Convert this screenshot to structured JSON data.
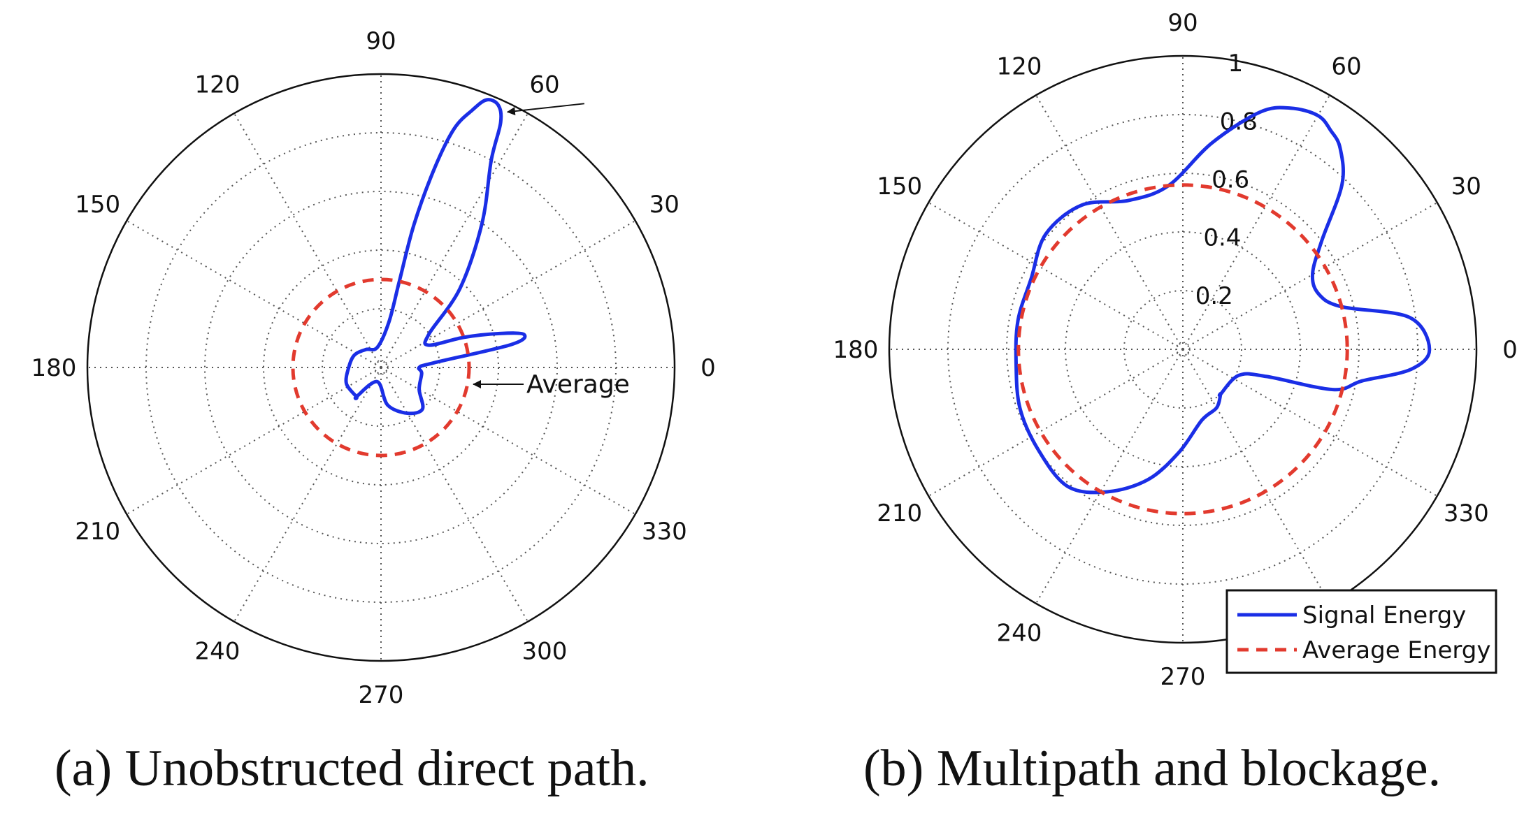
{
  "chart_data": [
    {
      "type": "polar",
      "caption": "(a) Unobstructed direct path.",
      "angle_ticks": [
        0,
        30,
        60,
        90,
        120,
        150,
        180,
        210,
        240,
        270,
        300,
        330
      ],
      "angle_tick_labels": [
        "0",
        "30",
        "60",
        "90",
        "120",
        "150",
        "180",
        "210",
        "240",
        "270",
        "300",
        "330"
      ],
      "radial_range": [
        0,
        1
      ],
      "radial_ticks": [
        0.2,
        0.4,
        0.6,
        0.8,
        1
      ],
      "radial_tick_labels": [],
      "grid": true,
      "series": [
        {
          "style": "solid",
          "color": "#1a2ee6",
          "points": [
            [
              -130,
              0.13
            ],
            [
              -105,
              0.05
            ],
            [
              -80,
              0.13
            ],
            [
              -60,
              0.18
            ],
            [
              -45,
              0.2
            ],
            [
              -30,
              0.15
            ],
            [
              -8,
              0.14
            ],
            [
              0,
              0.13
            ],
            [
              5,
              0.18
            ],
            [
              10,
              0.45
            ],
            [
              13,
              0.5
            ],
            [
              16,
              0.42
            ],
            [
              20,
              0.3
            ],
            [
              25,
              0.18
            ],
            [
              35,
              0.2
            ],
            [
              45,
              0.38
            ],
            [
              55,
              0.6
            ],
            [
              62,
              0.8
            ],
            [
              64,
              0.93
            ],
            [
              66,
              0.98
            ],
            [
              68.5,
              0.98
            ],
            [
              70.5,
              0.93
            ],
            [
              73,
              0.85
            ],
            [
              75,
              0.7
            ],
            [
              77,
              0.5
            ],
            [
              78,
              0.3
            ],
            [
              80,
              0.16
            ],
            [
              100,
              0.07
            ],
            [
              130,
              0.08
            ],
            [
              155,
              0.1
            ],
            [
              180,
              0.11
            ],
            [
              205,
              0.13
            ],
            [
              230,
              0.13
            ]
          ]
        },
        {
          "style": "dashed",
          "color": "#e23a2e",
          "radius": 0.3
        }
      ],
      "annotations": [
        {
          "text": "",
          "target_angle": 66,
          "target_r": 1.0
        },
        {
          "text": "Average",
          "target_angle": 0,
          "target_r": 0.3
        }
      ]
    },
    {
      "type": "polar",
      "caption": "(b) Multipath and blockage.",
      "angle_ticks": [
        0,
        30,
        60,
        90,
        120,
        150,
        180,
        210,
        240,
        270,
        300,
        330
      ],
      "angle_tick_labels": [
        "0",
        "30",
        "60",
        "90",
        "120",
        "150",
        "180",
        "210",
        "240",
        "270",
        "300",
        "330"
      ],
      "radial_range": [
        0,
        1
      ],
      "radial_ticks": [
        0.2,
        0.4,
        0.6,
        0.8,
        1
      ],
      "radial_tick_labels": [
        "0.2",
        "0.4",
        "0.6",
        "0.8",
        "1"
      ],
      "grid": true,
      "series": [
        {
          "name": "Signal Energy",
          "style": "solid",
          "color": "#1a2ee6",
          "points": [
            [
              -50,
              0.2
            ],
            [
              -25,
              0.21
            ],
            [
              -18,
              0.3
            ],
            [
              -15,
              0.53
            ],
            [
              -10,
              0.62
            ],
            [
              -5,
              0.78
            ],
            [
              0,
              0.84
            ],
            [
              8,
              0.78
            ],
            [
              15,
              0.56
            ],
            [
              22,
              0.5
            ],
            [
              30,
              0.51
            ],
            [
              38,
              0.6
            ],
            [
              46,
              0.78
            ],
            [
              52,
              0.87
            ],
            [
              56,
              0.9
            ],
            [
              60,
              0.92
            ],
            [
              66,
              0.9
            ],
            [
              72,
              0.85
            ],
            [
              82,
              0.71
            ],
            [
              95,
              0.56
            ],
            [
              110,
              0.54
            ],
            [
              125,
              0.6
            ],
            [
              140,
              0.61
            ],
            [
              155,
              0.57
            ],
            [
              170,
              0.57
            ],
            [
              185,
              0.57
            ],
            [
              200,
              0.59
            ],
            [
              215,
              0.6
            ],
            [
              230,
              0.61
            ],
            [
              242,
              0.55
            ],
            [
              255,
              0.46
            ],
            [
              268,
              0.35
            ],
            [
              285,
              0.25
            ],
            [
              300,
              0.23
            ],
            [
              310,
              0.2
            ]
          ]
        },
        {
          "name": "Average Energy",
          "style": "dashed",
          "color": "#e23a2e",
          "radius": 0.56
        }
      ],
      "legend": {
        "placement": "lower-right",
        "entries": [
          "Signal Energy",
          "Average Energy"
        ]
      }
    }
  ]
}
